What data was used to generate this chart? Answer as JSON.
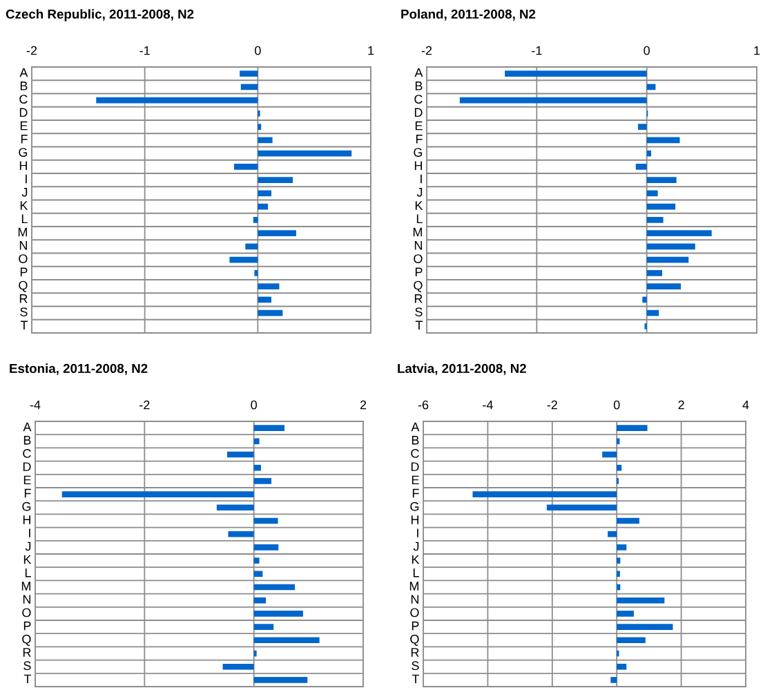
{
  "chart_data": [
    {
      "type": "bar",
      "orientation": "horizontal",
      "title": "Czech Republic, 2011-2008, N2",
      "categories": [
        "A",
        "B",
        "C",
        "D",
        "E",
        "F",
        "G",
        "H",
        "I",
        "J",
        "K",
        "L",
        "M",
        "N",
        "O",
        "P",
        "Q",
        "R",
        "S",
        "T"
      ],
      "values": [
        -0.16,
        -0.15,
        -1.43,
        0.02,
        0.03,
        0.13,
        0.83,
        -0.21,
        0.31,
        0.12,
        0.09,
        -0.04,
        0.34,
        -0.11,
        -0.25,
        -0.03,
        0.19,
        0.12,
        0.22,
        0.0
      ],
      "color": "#0066cc",
      "xlim": [
        -2,
        1
      ],
      "xticks": [
        -2,
        -1,
        0,
        1
      ],
      "grid": true
    },
    {
      "type": "bar",
      "orientation": "horizontal",
      "title": "Poland, 2011-2008, N2",
      "categories": [
        "A",
        "B",
        "C",
        "D",
        "E",
        "F",
        "G",
        "H",
        "I",
        "J",
        "K",
        "L",
        "M",
        "N",
        "O",
        "P",
        "Q",
        "R",
        "S",
        "T"
      ],
      "values": [
        -1.29,
        0.08,
        -1.7,
        0.01,
        -0.08,
        0.3,
        0.04,
        -0.1,
        0.27,
        0.1,
        0.26,
        0.15,
        0.59,
        0.44,
        0.38,
        0.14,
        0.31,
        -0.04,
        0.11,
        -0.02
      ],
      "color": "#0066cc",
      "xlim": [
        -2,
        1
      ],
      "xticks": [
        -2,
        -1,
        0,
        1
      ],
      "grid": true
    },
    {
      "type": "bar",
      "orientation": "horizontal",
      "title": "Estonia, 2011-2008, N2",
      "categories": [
        "A",
        "B",
        "C",
        "D",
        "E",
        "F",
        "G",
        "H",
        "I",
        "J",
        "K",
        "L",
        "M",
        "N",
        "O",
        "P",
        "Q",
        "R",
        "S",
        "T"
      ],
      "values": [
        0.56,
        0.1,
        -0.49,
        0.13,
        0.32,
        -3.51,
        -0.68,
        0.44,
        -0.47,
        0.45,
        0.1,
        0.16,
        0.75,
        0.22,
        0.9,
        0.36,
        1.2,
        0.05,
        -0.57,
        0.98
      ],
      "color": "#0066cc",
      "xlim": [
        -4,
        2
      ],
      "xticks": [
        -4,
        -2,
        0,
        2
      ],
      "grid": true
    },
    {
      "type": "bar",
      "orientation": "horizontal",
      "title": "Latvia, 2011-2008, N2",
      "categories": [
        "A",
        "B",
        "C",
        "D",
        "E",
        "F",
        "G",
        "H",
        "I",
        "J",
        "K",
        "L",
        "M",
        "N",
        "O",
        "P",
        "Q",
        "R",
        "S",
        "T"
      ],
      "values": [
        0.95,
        0.09,
        -0.45,
        0.15,
        0.06,
        -4.47,
        -2.17,
        0.7,
        -0.28,
        0.3,
        0.11,
        0.1,
        0.11,
        1.48,
        0.53,
        1.74,
        0.89,
        0.07,
        0.3,
        -0.19
      ],
      "color": "#0066cc",
      "xlim": [
        -6,
        4
      ],
      "xticks": [
        -6,
        -4,
        -2,
        0,
        2,
        4
      ],
      "grid": true
    }
  ]
}
